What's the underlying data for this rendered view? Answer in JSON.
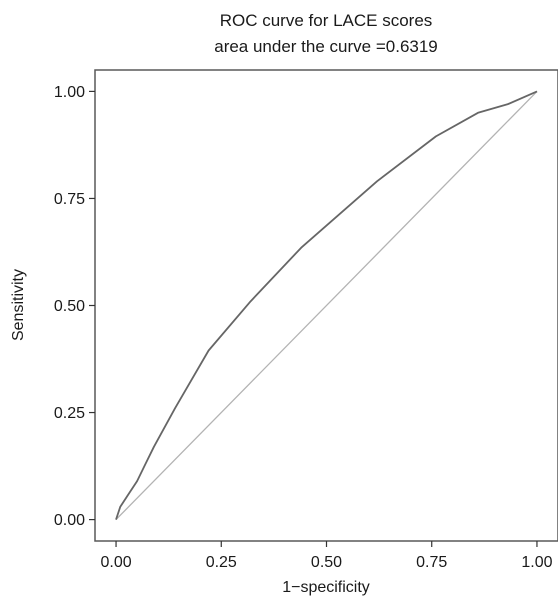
{
  "chart_data": {
    "type": "line",
    "title": "ROC curve for LACE scores",
    "subtitle": "area under the curve =0.6319",
    "xlabel": "1−specificity",
    "ylabel": "Sensitivity",
    "xlim": [
      -0.05,
      1.05
    ],
    "ylim": [
      -0.05,
      1.05
    ],
    "xticks": [
      0.0,
      0.25,
      0.5,
      0.75,
      1.0
    ],
    "xtick_labels": [
      "0.00",
      "0.25",
      "0.50",
      "0.75",
      "1.00"
    ],
    "yticks": [
      0.0,
      0.25,
      0.5,
      0.75,
      1.0
    ],
    "ytick_labels": [
      "0.00",
      "0.25",
      "0.50",
      "0.75",
      "1.00"
    ],
    "grid": false,
    "legend": "none",
    "series": [
      {
        "x": [
          0.0,
          0.01,
          0.03,
          0.05,
          0.07,
          0.09,
          0.14,
          0.22,
          0.32,
          0.44,
          0.62,
          0.76,
          0.86,
          0.93,
          1.0
        ],
        "y": [
          0.0,
          0.03,
          0.06,
          0.09,
          0.13,
          0.17,
          0.26,
          0.395,
          0.51,
          0.635,
          0.79,
          0.895,
          0.95,
          0.97,
          1.0
        ],
        "color": "#666666"
      },
      {
        "x": [
          0.0,
          1.0
        ],
        "y": [
          0.0,
          1.0
        ],
        "color": "#b3b3b3"
      }
    ]
  }
}
